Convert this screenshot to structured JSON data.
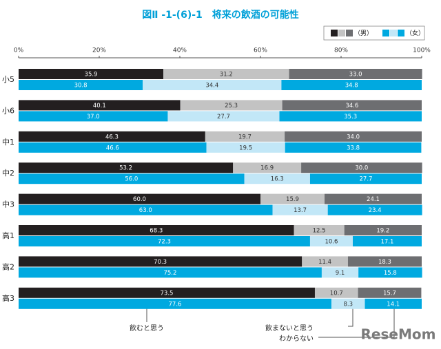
{
  "chart_data": {
    "type": "stacked-bar-100",
    "title": "図Ⅱ -1-(6)-1　将来の飲酒の可能性",
    "categories": [
      "小5",
      "小6",
      "中1",
      "中2",
      "中3",
      "高1",
      "高2",
      "高3"
    ],
    "segments": [
      "飲むと思う",
      "飲まないと思う",
      "わからない"
    ],
    "xlim": [
      0,
      100
    ],
    "xticks": [
      {
        "value": 0,
        "label": "0%"
      },
      {
        "value": 20,
        "label": "20%"
      },
      {
        "value": 40,
        "label": "40%"
      },
      {
        "value": 60,
        "label": "60%"
      },
      {
        "value": 80,
        "label": "80%"
      },
      {
        "value": 100,
        "label": "100%"
      }
    ],
    "groups": [
      {
        "name": "（男）",
        "series": [
          {
            "color": "#231f20",
            "label_color": "#ffffff",
            "values": [
              35.9,
              40.1,
              46.3,
              53.2,
              60,
              68.3,
              70.3,
              73.5
            ],
            "value_labels": [
              "35.9",
              "40.1",
              "46.3",
              "53.2",
              "60.0",
              "68.3",
              "70.3",
              "73.5"
            ]
          },
          {
            "color": "#c3c3c3",
            "label_color": "#333333",
            "values": [
              31.2,
              25.3,
              19.7,
              16.9,
              15.9,
              12.5,
              11.4,
              10.7
            ],
            "value_labels": [
              "31.2",
              "25.3",
              "19.7",
              "16.9",
              "15.9",
              "12.5",
              "11.4",
              "10.7"
            ]
          },
          {
            "color": "#6d6e71",
            "label_color": "#ffffff",
            "values": [
              33,
              34.6,
              34,
              30,
              24.1,
              19.2,
              18.3,
              15.7
            ],
            "value_labels": [
              "33.0",
              "34.6",
              "34.0",
              "30.0",
              "24.1",
              "19.2",
              "18.3",
              "15.7"
            ]
          }
        ]
      },
      {
        "name": "（女）",
        "series": [
          {
            "color": "#00a9e0",
            "label_color": "#ffffff",
            "values": [
              30.8,
              37,
              46.6,
              56,
              63,
              72.3,
              75.2,
              77.6
            ],
            "value_labels": [
              "30.8",
              "37.0",
              "46.6",
              "56.0",
              "63.0",
              "72.3",
              "75.2",
              "77.6"
            ]
          },
          {
            "color": "#c2e7f7",
            "label_color": "#333333",
            "values": [
              34.4,
              27.7,
              19.5,
              16.3,
              13.7,
              10.6,
              9.1,
              8.3
            ],
            "value_labels": [
              "34.4",
              "27.7",
              "19.5",
              "16.3",
              "13.7",
              "10.6",
              "9.1",
              "8.3"
            ]
          },
          {
            "color": "#00a9e0",
            "label_color": "#ffffff",
            "values": [
              34.8,
              35.3,
              33.8,
              27.7,
              23.4,
              17.1,
              15.8,
              14.1
            ],
            "value_labels": [
              "34.8",
              "35.3",
              "33.8",
              "27.7",
              "23.4",
              "17.1",
              "15.8",
              "14.1"
            ]
          }
        ]
      }
    ],
    "watermark": "ReseMom"
  }
}
